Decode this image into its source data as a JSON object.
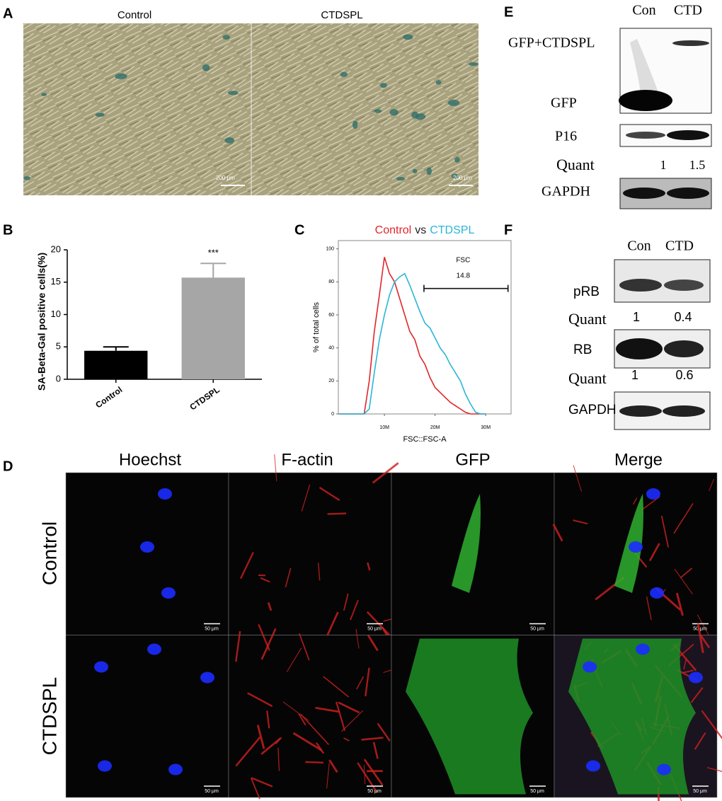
{
  "panel_letters": [
    "A",
    "B",
    "C",
    "D",
    "E",
    "F"
  ],
  "panel_a": {
    "columns": [
      "Control",
      "CTDSPL"
    ],
    "scale_bar": "200 μm"
  },
  "panel_d": {
    "columns": [
      "Hoechst",
      "F-actin",
      "GFP",
      "Merge"
    ],
    "rows": [
      "Control",
      "CTDSPL"
    ],
    "scale_bar": "50 μm"
  },
  "panel_e": {
    "lanes": [
      "Con",
      "CTD"
    ],
    "blots": {
      "fusion": "GFP+CTDSPL",
      "gfp": "GFP",
      "p16": "P16",
      "gapdh": "GAPDH"
    },
    "quant_label": "Quant",
    "quant": [
      1,
      1.5
    ]
  },
  "panel_f": {
    "lanes": [
      "Con",
      "CTD"
    ],
    "blots": [
      {
        "label": "pRB",
        "quant_label": "Quant",
        "quant": [
          1,
          0.4
        ]
      },
      {
        "label": "RB",
        "quant_label": "Quant",
        "quant": [
          1,
          0.6
        ]
      },
      {
        "label": "GAPDH"
      }
    ]
  },
  "chart_data": [
    {
      "type": "bar",
      "ylabel": "SA-Beta-Gal positive cells(%)",
      "categories": [
        "Control",
        "CTDSPL"
      ],
      "values": [
        4.4,
        15.7
      ],
      "errors": [
        0.6,
        2.2
      ],
      "colors": [
        "#000000",
        "#a6a6a6"
      ],
      "ylim": [
        0,
        20
      ],
      "yticks": [
        0,
        5,
        10,
        15,
        20
      ],
      "annotations": [
        {
          "text": "***",
          "x": "CTDSPL"
        }
      ]
    },
    {
      "type": "line",
      "title_separator": "vs",
      "xlabel": "FSC::FSC-A",
      "ylabel": "% of total cells",
      "x": [
        1000000,
        5000000,
        6000000,
        7000000,
        8000000,
        9000000,
        10000000,
        11000000,
        12000000,
        13000000,
        14000000,
        15000000,
        16000000,
        17000000,
        18000000,
        19000000,
        20000000,
        21000000,
        22000000,
        23000000,
        24000000,
        25000000,
        26000000,
        27000000,
        28000000,
        29000000,
        30000000
      ],
      "series": [
        {
          "name": "Control",
          "color": "#e0262b",
          "values": [
            0,
            0,
            0,
            20,
            50,
            72,
            95,
            85,
            80,
            70,
            60,
            50,
            45,
            35,
            30,
            22,
            16,
            13,
            10,
            7,
            5,
            3,
            1,
            0,
            0,
            0,
            0
          ]
        },
        {
          "name": "CTDSPL",
          "color": "#29b6d6",
          "values": [
            0,
            0,
            0,
            3,
            25,
            45,
            60,
            72,
            80,
            83,
            85,
            78,
            70,
            62,
            55,
            52,
            46,
            40,
            36,
            30,
            25,
            20,
            12,
            6,
            1,
            0,
            0
          ]
        }
      ],
      "xlim": [
        900000,
        35000000
      ],
      "ylim": [
        0,
        105
      ],
      "xticks": [
        {
          "value": 10000000,
          "label": "10M"
        },
        {
          "value": 20000000,
          "label": "20M"
        },
        {
          "value": 30000000,
          "label": "30M"
        }
      ],
      "yticks": [
        0,
        20,
        40,
        60,
        80,
        100
      ],
      "gate": {
        "label": "FSC",
        "value": 14.8,
        "x": [
          17800000,
          34400000
        ],
        "y": 76
      }
    }
  ]
}
